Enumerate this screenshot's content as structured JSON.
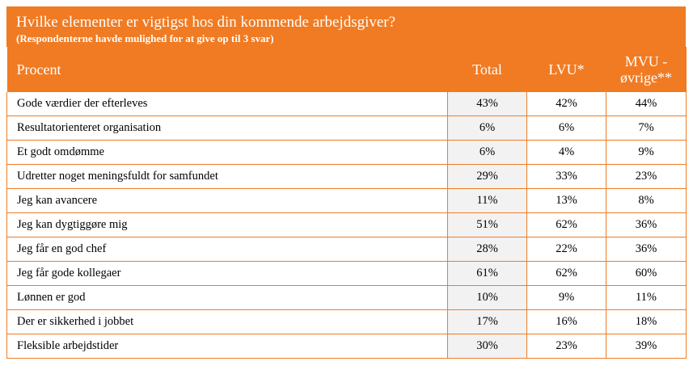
{
  "header": {
    "title": "Hvilke elementer er vigtigst hos din kommende arbejdsgiver?",
    "subtitle": "(Respondenterne havde mulighed for at give op til 3 svar)"
  },
  "colors": {
    "accent": "#f07b23",
    "total_cell_bg": "#f2f2f2"
  },
  "chart_data": {
    "type": "table",
    "title": "Hvilke elementer er vigtigst hos din kommende arbejdsgiver?",
    "subtitle": "(Respondenterne havde mulighed for at give op til 3 svar)",
    "columns": [
      "Procent",
      "Total",
      "LVU*",
      "MVU - øvrige**"
    ],
    "rows": [
      {
        "label": "Gode værdier der efterleves",
        "values": [
          "43%",
          "42%",
          "44%"
        ]
      },
      {
        "label": "Resultatorienteret organisation",
        "values": [
          "6%",
          "6%",
          "7%"
        ]
      },
      {
        "label": "Et godt omdømme",
        "values": [
          "6%",
          "4%",
          "9%"
        ]
      },
      {
        "label": "Udretter noget meningsfuldt for samfundet",
        "values": [
          "29%",
          "33%",
          "23%"
        ]
      },
      {
        "label": "Jeg kan avancere",
        "values": [
          "11%",
          "13%",
          "8%"
        ]
      },
      {
        "label": "Jeg kan dygtiggøre mig",
        "values": [
          "51%",
          "62%",
          "36%"
        ]
      },
      {
        "label": "Jeg får en god chef",
        "values": [
          "28%",
          "22%",
          "36%"
        ]
      },
      {
        "label": "Jeg får gode kollegaer",
        "values": [
          "61%",
          "62%",
          "60%"
        ]
      },
      {
        "label": "Lønnen er god",
        "values": [
          "10%",
          "9%",
          "11%"
        ]
      },
      {
        "label": "Der er sikkerhed i jobbet",
        "values": [
          "17%",
          "16%",
          "18%"
        ]
      },
      {
        "label": "Fleksible arbejdstider",
        "values": [
          "30%",
          "23%",
          "39%"
        ]
      }
    ]
  }
}
